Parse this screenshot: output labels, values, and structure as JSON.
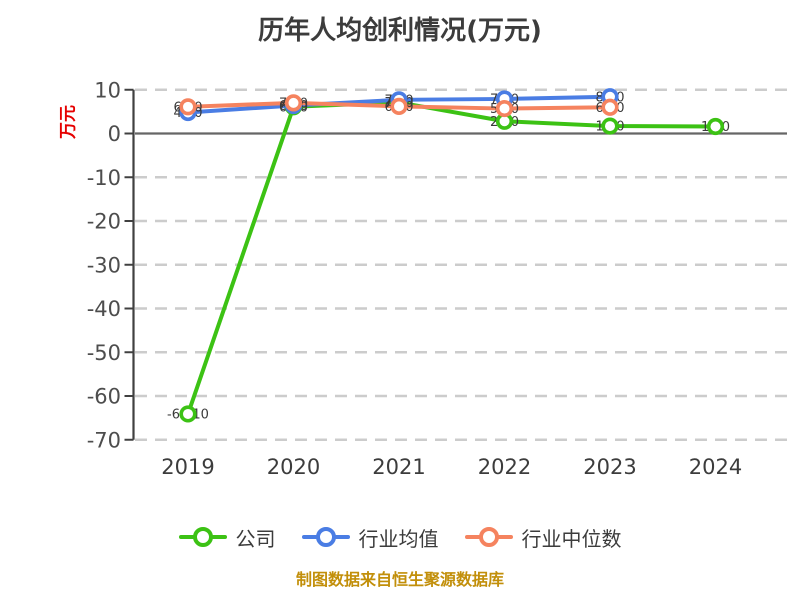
{
  "title": "历年人均创利情况(万元)",
  "source_note": "制图数据来自恒生聚源数据库",
  "axes": {
    "y_unit": "万元",
    "y_ticks": [
      10,
      0,
      -10,
      -20,
      -30,
      -40,
      -50,
      -60,
      -70
    ],
    "x_ticks": [
      "2019",
      "2020",
      "2021",
      "2022",
      "2023",
      "2024"
    ]
  },
  "colors": {
    "title_text": "#3c3c3c",
    "tick_label": "#4d4d4d",
    "x_label": "#3c3c3c",
    "axis_spine": "#404040",
    "gridline_dashed": "#cccccc",
    "zero_line": "#666666",
    "y_unit_red": "#e60000",
    "point_label": "#3a3a3a",
    "legend_text": "#3c3c3c",
    "source_text": "#c28f0a",
    "marker_fill": "#ffffff"
  },
  "chart_data": {
    "type": "line",
    "title": "历年人均创利情况(万元)",
    "ylabel": "万元",
    "ylim": [
      -70,
      10
    ],
    "grid": true,
    "legend_position": "bottom",
    "categories": [
      "2019",
      "2020",
      "2021",
      "2022",
      "2023",
      "2024"
    ],
    "series": [
      {
        "name": "公司",
        "key": "company",
        "color": "#3cc214",
        "values": [
          -64.1,
          6.1,
          7.1,
          2.8,
          1.7,
          1.6
        ]
      },
      {
        "name": "行业均值",
        "key": "industry-mean",
        "color": "#4a7de4",
        "values": [
          4.8,
          6.4,
          7.7,
          7.9,
          8.4,
          null
        ]
      },
      {
        "name": "行业中位数",
        "key": "industry-median",
        "color": "#f5835f",
        "values": [
          6.1,
          7.0,
          6.2,
          5.7,
          6.0,
          null
        ]
      }
    ]
  }
}
